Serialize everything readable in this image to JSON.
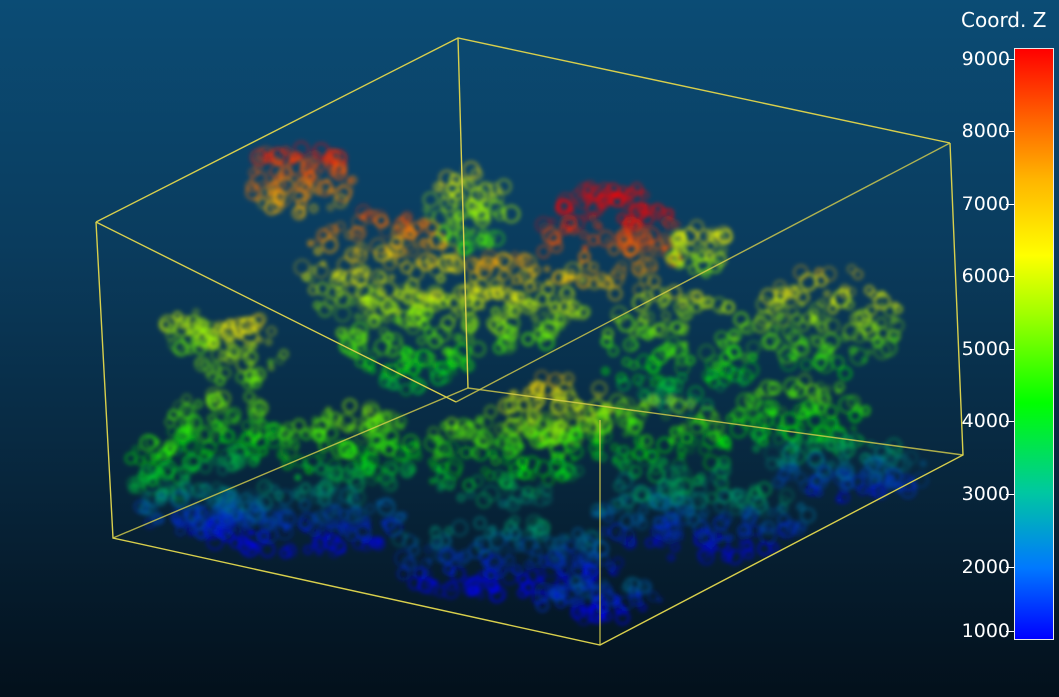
{
  "viewer": {
    "scalar_field": "Coord. Z",
    "colors": {
      "bbox": "#d8cf4c",
      "background_top": "#0b4c75",
      "background_bottom": "#03101b"
    }
  },
  "scalebar": {
    "title": "Coord. Z",
    "min": 1000,
    "max": 9000,
    "ticks": [
      "9000",
      "8000",
      "7000",
      "6000",
      "5000",
      "4000",
      "3000",
      "2000",
      "1000"
    ],
    "ramp": [
      "#0000ff",
      "#00ff00",
      "#ffff00",
      "#ff0000"
    ]
  }
}
